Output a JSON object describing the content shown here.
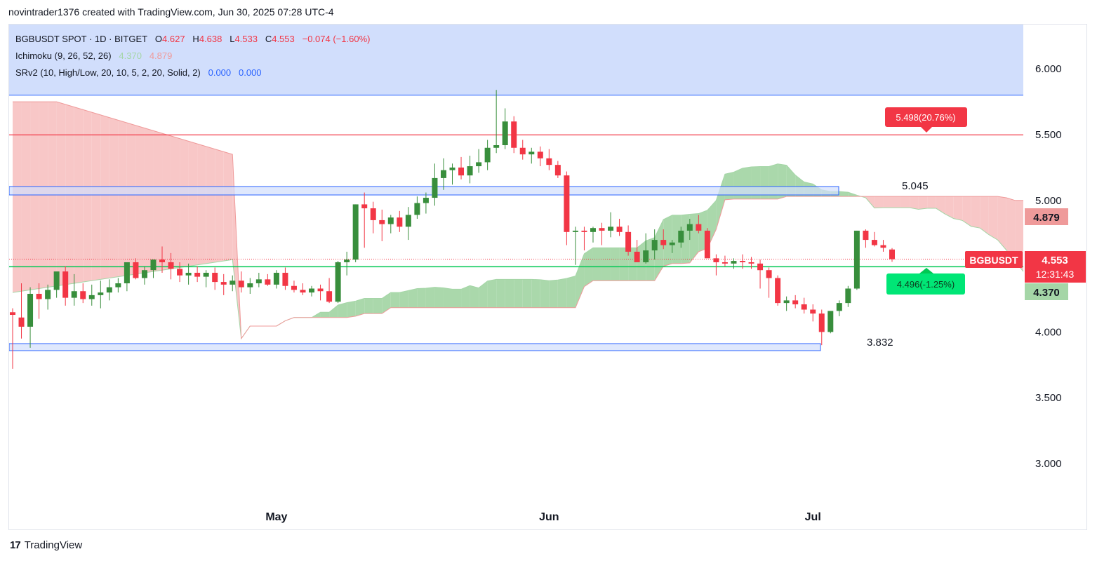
{
  "header": {
    "attribution": "novintrader1376 created with TradingView.com, Jun 30, 2025 07:28 UTC-4"
  },
  "legend": {
    "symbol_line": "BGBUSDT SPOT · 1D · BITGET",
    "ohlc": {
      "o_label": "O",
      "o": "4.627",
      "h_label": "H",
      "h": "4.638",
      "l_label": "L",
      "l": "4.533",
      "c_label": "C",
      "c": "4.553",
      "change": "−0.074 (−1.60%)"
    },
    "ichimoku": {
      "name": "Ichimoku (9, 26, 52, 26)",
      "v1": "4.370",
      "v2": "4.879"
    },
    "srv2": {
      "name": "SRv2 (10, High/Low, 20, 10, 5, 2, 20, Solid, 2)",
      "v1": "0.000",
      "v2": "0.000"
    }
  },
  "footer": {
    "logo_text": "TradingView",
    "logo_mark": "17"
  },
  "colors": {
    "up": "#388e3c",
    "down": "#f23645",
    "cloud_bear": "#f8c4c4",
    "cloud_bull": "#a5d6a7",
    "zone": "#d1defc",
    "zone_border": "#2962ff",
    "hline_red": "#f23645",
    "hline_green": "#00c853"
  },
  "chart_data": {
    "type": "candlestick",
    "symbol": "BGBUSDT",
    "timeframe": "1D",
    "x_labels": [
      {
        "label": "May",
        "index": 30
      },
      {
        "label": "Jun",
        "index": 61
      },
      {
        "label": "Jul",
        "index": 91
      }
    ],
    "y_axis": {
      "ylim": [
        2.6,
        6.4
      ],
      "ticks": [
        "6.000",
        "5.500",
        "5.000",
        "4.000",
        "3.500",
        "3.000"
      ]
    },
    "candles": [
      [
        4.15,
        4.18,
        3.72,
        4.13
      ],
      [
        4.11,
        4.37,
        3.95,
        4.04
      ],
      [
        4.04,
        4.34,
        3.88,
        4.29
      ],
      [
        4.29,
        4.37,
        4.1,
        4.25
      ],
      [
        4.25,
        4.36,
        4.17,
        4.32
      ],
      [
        4.32,
        4.45,
        4.26,
        4.46
      ],
      [
        4.46,
        4.5,
        4.2,
        4.26
      ],
      [
        4.26,
        4.44,
        4.2,
        4.31
      ],
      [
        4.31,
        4.37,
        4.22,
        4.25
      ],
      [
        4.25,
        4.36,
        4.2,
        4.28
      ],
      [
        4.28,
        4.39,
        4.18,
        4.3
      ],
      [
        4.3,
        4.4,
        4.24,
        4.34
      ],
      [
        4.34,
        4.41,
        4.3,
        4.37
      ],
      [
        4.37,
        4.52,
        4.31,
        4.53
      ],
      [
        4.53,
        4.56,
        4.4,
        4.41
      ],
      [
        4.41,
        4.5,
        4.36,
        4.47
      ],
      [
        4.47,
        4.55,
        4.41,
        4.55
      ],
      [
        4.55,
        4.65,
        4.45,
        4.53
      ],
      [
        4.53,
        4.6,
        4.4,
        4.48
      ],
      [
        4.48,
        4.53,
        4.38,
        4.43
      ],
      [
        4.43,
        4.52,
        4.36,
        4.45
      ],
      [
        4.45,
        4.5,
        4.38,
        4.42
      ],
      [
        4.42,
        4.47,
        4.34,
        4.45
      ],
      [
        4.45,
        4.49,
        4.32,
        4.38
      ],
      [
        4.38,
        4.44,
        4.28,
        4.36
      ],
      [
        4.36,
        4.43,
        4.31,
        4.39
      ],
      [
        4.39,
        4.46,
        4.3,
        4.34
      ],
      [
        4.34,
        4.41,
        4.29,
        4.37
      ],
      [
        4.37,
        4.45,
        4.34,
        4.4
      ],
      [
        4.4,
        4.44,
        4.35,
        4.36
      ],
      [
        4.36,
        4.47,
        4.33,
        4.45
      ],
      [
        4.45,
        4.49,
        4.32,
        4.35
      ],
      [
        4.35,
        4.39,
        4.3,
        4.32
      ],
      [
        4.32,
        4.37,
        4.28,
        4.3
      ],
      [
        4.3,
        4.35,
        4.27,
        4.33
      ],
      [
        4.33,
        4.36,
        4.24,
        4.31
      ],
      [
        4.31,
        4.41,
        4.22,
        4.23
      ],
      [
        4.23,
        4.54,
        4.22,
        4.53
      ],
      [
        4.53,
        4.61,
        4.43,
        4.55
      ],
      [
        4.55,
        4.97,
        4.53,
        4.97
      ],
      [
        4.97,
        5.06,
        4.64,
        4.94
      ],
      [
        4.94,
        4.99,
        4.75,
        4.85
      ],
      [
        4.85,
        4.93,
        4.69,
        4.82
      ],
      [
        4.82,
        4.89,
        4.75,
        4.87
      ],
      [
        4.87,
        4.92,
        4.76,
        4.8
      ],
      [
        4.8,
        4.95,
        4.7,
        4.89
      ],
      [
        4.89,
        5.03,
        4.86,
        4.98
      ],
      [
        4.98,
        5.06,
        4.9,
        5.02
      ],
      [
        5.02,
        5.28,
        4.96,
        5.17
      ],
      [
        5.17,
        5.32,
        5.08,
        5.23
      ],
      [
        5.23,
        5.28,
        5.12,
        5.25
      ],
      [
        5.25,
        5.33,
        5.16,
        5.19
      ],
      [
        5.19,
        5.34,
        5.13,
        5.26
      ],
      [
        5.26,
        5.39,
        5.21,
        5.29
      ],
      [
        5.29,
        5.46,
        5.23,
        5.4
      ],
      [
        5.4,
        5.84,
        5.36,
        5.42
      ],
      [
        5.42,
        5.7,
        5.39,
        5.6
      ],
      [
        5.6,
        5.64,
        5.36,
        5.4
      ],
      [
        5.4,
        5.46,
        5.31,
        5.35
      ],
      [
        5.35,
        5.4,
        5.28,
        5.37
      ],
      [
        5.37,
        5.41,
        5.26,
        5.32
      ],
      [
        5.32,
        5.39,
        5.23,
        5.27
      ],
      [
        5.27,
        5.3,
        5.17,
        5.19
      ],
      [
        5.19,
        5.22,
        4.66,
        4.76
      ],
      [
        4.76,
        4.8,
        4.51,
        4.77
      ],
      [
        4.77,
        4.8,
        4.62,
        4.76
      ],
      [
        4.76,
        4.8,
        4.68,
        4.79
      ],
      [
        4.79,
        4.83,
        4.66,
        4.77
      ],
      [
        4.77,
        4.91,
        4.72,
        4.8
      ],
      [
        4.8,
        4.86,
        4.73,
        4.76
      ],
      [
        4.76,
        4.81,
        4.58,
        4.61
      ],
      [
        4.61,
        4.7,
        4.54,
        4.53
      ],
      [
        4.53,
        4.75,
        4.52,
        4.62
      ],
      [
        4.62,
        4.78,
        4.55,
        4.7
      ],
      [
        4.7,
        4.78,
        4.63,
        4.66
      ],
      [
        4.66,
        4.7,
        4.6,
        4.68
      ],
      [
        4.68,
        4.8,
        4.64,
        4.77
      ],
      [
        4.77,
        4.86,
        4.7,
        4.82
      ],
      [
        4.82,
        4.89,
        4.75,
        4.77
      ],
      [
        4.77,
        4.79,
        4.58,
        4.56
      ],
      [
        4.56,
        4.59,
        4.43,
        4.53
      ],
      [
        4.53,
        4.58,
        4.5,
        4.52
      ],
      [
        4.52,
        4.56,
        4.48,
        4.54
      ],
      [
        4.54,
        4.59,
        4.48,
        4.53
      ],
      [
        4.53,
        4.57,
        4.48,
        4.52
      ],
      [
        4.52,
        4.55,
        4.33,
        4.47
      ],
      [
        4.47,
        4.49,
        4.26,
        4.41
      ],
      [
        4.41,
        4.43,
        4.2,
        4.22
      ],
      [
        4.22,
        4.27,
        4.16,
        4.24
      ],
      [
        4.24,
        4.28,
        4.18,
        4.21
      ],
      [
        4.21,
        4.26,
        4.14,
        4.17
      ],
      [
        4.17,
        4.21,
        4.08,
        4.14
      ],
      [
        4.14,
        4.17,
        3.9,
        4.0
      ],
      [
        4.0,
        4.14,
        3.99,
        4.16
      ],
      [
        4.16,
        4.24,
        4.12,
        4.22
      ],
      [
        4.22,
        4.35,
        4.19,
        4.33
      ],
      [
        4.33,
        4.77,
        4.32,
        4.77
      ],
      [
        4.77,
        4.78,
        4.64,
        4.7
      ],
      [
        4.7,
        4.76,
        4.65,
        4.66
      ],
      [
        4.66,
        4.7,
        4.61,
        4.64
      ],
      [
        4.627,
        4.638,
        4.533,
        4.553
      ]
    ],
    "zones": [
      {
        "from": 5.8,
        "to": 6.4,
        "label": ""
      },
      {
        "from": 5.045,
        "to": 5.08,
        "label": "5.045"
      },
      {
        "from": 3.832,
        "to": 3.86,
        "label": "3.832"
      }
    ],
    "hlines": [
      {
        "value": 5.498,
        "color": "#f23645",
        "label": "5.498(20.76%)"
      },
      {
        "value": 4.496,
        "color": "#00c853",
        "label": "4.496(-1.25%)"
      }
    ],
    "last_price": {
      "symbol": "BGBUSDT",
      "value": "4.553",
      "countdown": "12:31:43"
    },
    "ichimoku_labels": {
      "span_a": "4.370",
      "span_b": "4.879"
    }
  }
}
